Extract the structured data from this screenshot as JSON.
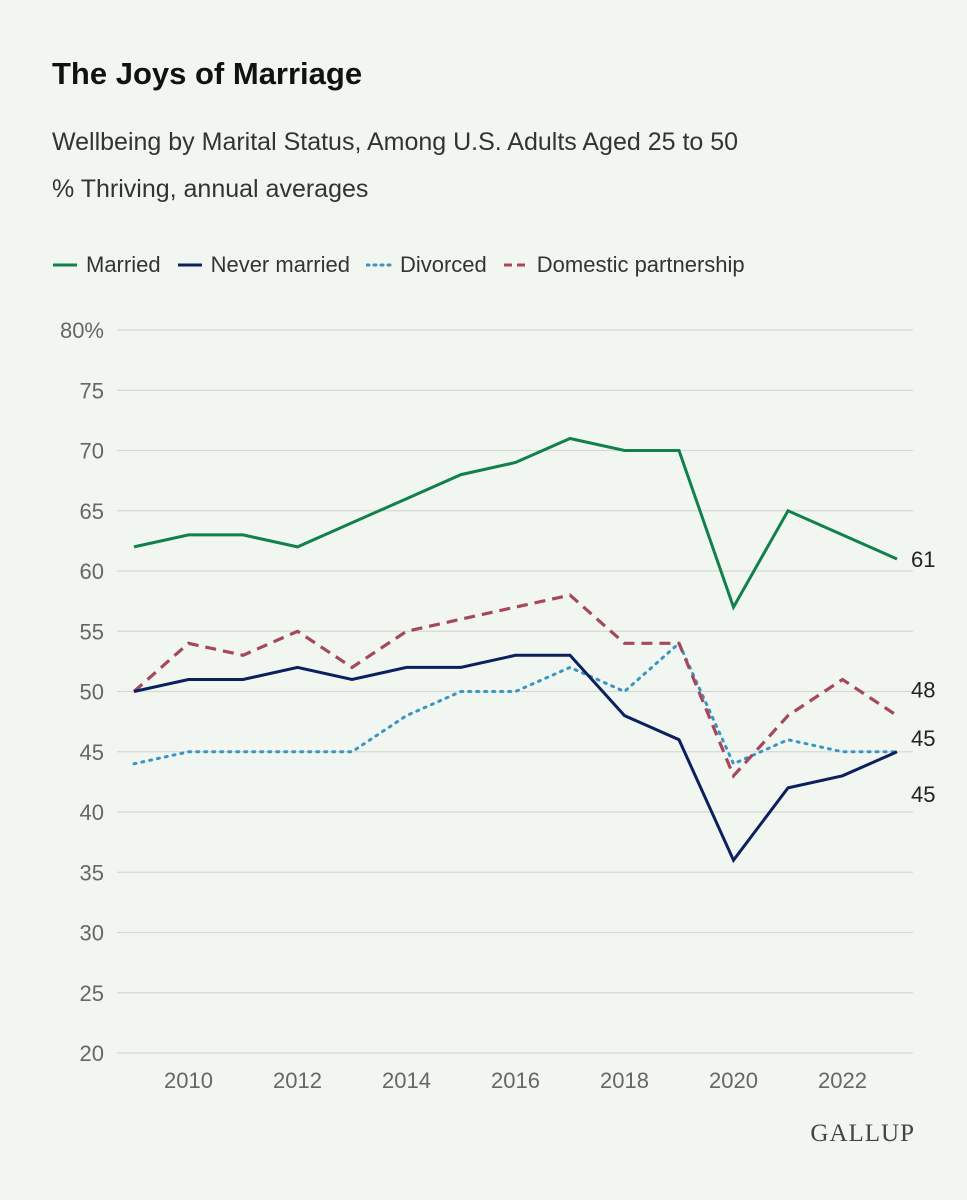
{
  "header": {
    "title": "The Joys of Marriage",
    "subtitle": "Wellbeing by Marital Status, Among U.S. Adults Aged 25 to 50",
    "units": "% Thriving, annual averages"
  },
  "brand": {
    "name": "GALLUP"
  },
  "colors": {
    "married": "#11804a",
    "never_married": "#0c1f5e",
    "divorced": "#3a95c4",
    "domestic_partnership": "#a6475a",
    "grid": "#d6d9d3",
    "axis_text": "#666666"
  },
  "chart_data": {
    "type": "line",
    "title": "The Joys of Marriage",
    "subtitle": "Wellbeing by Marital Status, Among U.S. Adults Aged 25 to 50",
    "ylabel": "% Thriving, annual averages",
    "xlabel": "",
    "x": [
      2009,
      2010,
      2011,
      2012,
      2013,
      2014,
      2015,
      2016,
      2017,
      2018,
      2019,
      2020,
      2021,
      2022,
      2023
    ],
    "xticks": [
      2010,
      2012,
      2014,
      2016,
      2018,
      2020,
      2022
    ],
    "xtick_labels": [
      "2010",
      "2012",
      "2014",
      "2016",
      "2018",
      "2020",
      "2022"
    ],
    "xlim": [
      2009,
      2023
    ],
    "ylim": [
      20,
      80
    ],
    "yticks": [
      20,
      25,
      30,
      35,
      40,
      45,
      50,
      55,
      60,
      65,
      70,
      75,
      80
    ],
    "ytick_labels": [
      "20",
      "25",
      "30",
      "35",
      "40",
      "45",
      "50",
      "55",
      "60",
      "65",
      "70",
      "75",
      "80%"
    ],
    "grid": true,
    "legend_position": "top-left",
    "series": [
      {
        "key": "married",
        "name": "Married",
        "style": "solid",
        "values": [
          62,
          63,
          63,
          62,
          64,
          66,
          68,
          69,
          71,
          70,
          70,
          57,
          65,
          63,
          61
        ],
        "end_label": "61"
      },
      {
        "key": "never_married",
        "name": "Never married",
        "style": "solid",
        "values": [
          50,
          51,
          51,
          52,
          51,
          52,
          52,
          53,
          53,
          48,
          46,
          36,
          42,
          43,
          45
        ],
        "end_label": "45"
      },
      {
        "key": "divorced",
        "name": "Divorced",
        "style": "dotted",
        "values": [
          44,
          45,
          45,
          45,
          45,
          48,
          50,
          50,
          52,
          50,
          54,
          44,
          46,
          45,
          45
        ],
        "end_label": "45"
      },
      {
        "key": "domestic_partnership",
        "name": "Domestic partnership",
        "style": "dashed",
        "values": [
          50,
          54,
          53,
          55,
          52,
          55,
          56,
          57,
          58,
          54,
          54,
          43,
          48,
          51,
          48
        ],
        "end_label": "48"
      }
    ]
  }
}
